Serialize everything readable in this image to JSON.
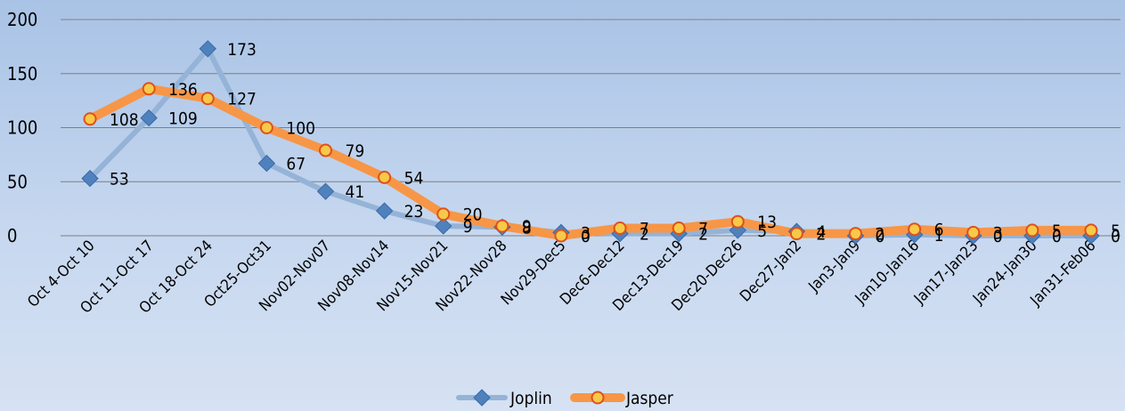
{
  "chart_data": {
    "type": "line",
    "title": "",
    "xlabel": "",
    "ylabel": "",
    "ylim": [
      0,
      200
    ],
    "yticks": [
      0,
      50,
      100,
      150,
      200
    ],
    "grid": true,
    "legend_position": "bottom",
    "categories": [
      "Oct 4-Oct 10",
      "Oct 11-Oct 17",
      "Oct 18-Oct 24",
      "Oct25-Oct31",
      "Nov02-Nov07",
      "Nov08-Nov14",
      "Nov15-Nov21",
      "Nov22-Nov28",
      "Nov29-Dec5",
      "Dec6-Dec12",
      "Dec13-Dec19",
      "Dec20-Dec26",
      "Dec27-Jan2",
      "Jan3-Jan9",
      "Jan10-Jan16",
      "Jan17-Jan23",
      "Jan24-Jan30",
      "Jan31-Feb06"
    ],
    "series": [
      {
        "name": "Joplin",
        "color": "#4f81bd",
        "line_color": "#95b3d7",
        "marker": "diamond",
        "values": [
          53,
          109,
          173,
          67,
          41,
          23,
          9,
          8,
          3,
          2,
          2,
          5,
          4,
          0,
          1,
          0,
          0,
          0
        ]
      },
      {
        "name": "Jasper",
        "color": "#f79646",
        "line_color": "#f79646",
        "marker": "circle",
        "values": [
          108,
          136,
          127,
          100,
          79,
          54,
          20,
          9,
          0,
          7,
          7,
          13,
          2,
          2,
          6,
          3,
          5,
          5
        ]
      }
    ]
  }
}
